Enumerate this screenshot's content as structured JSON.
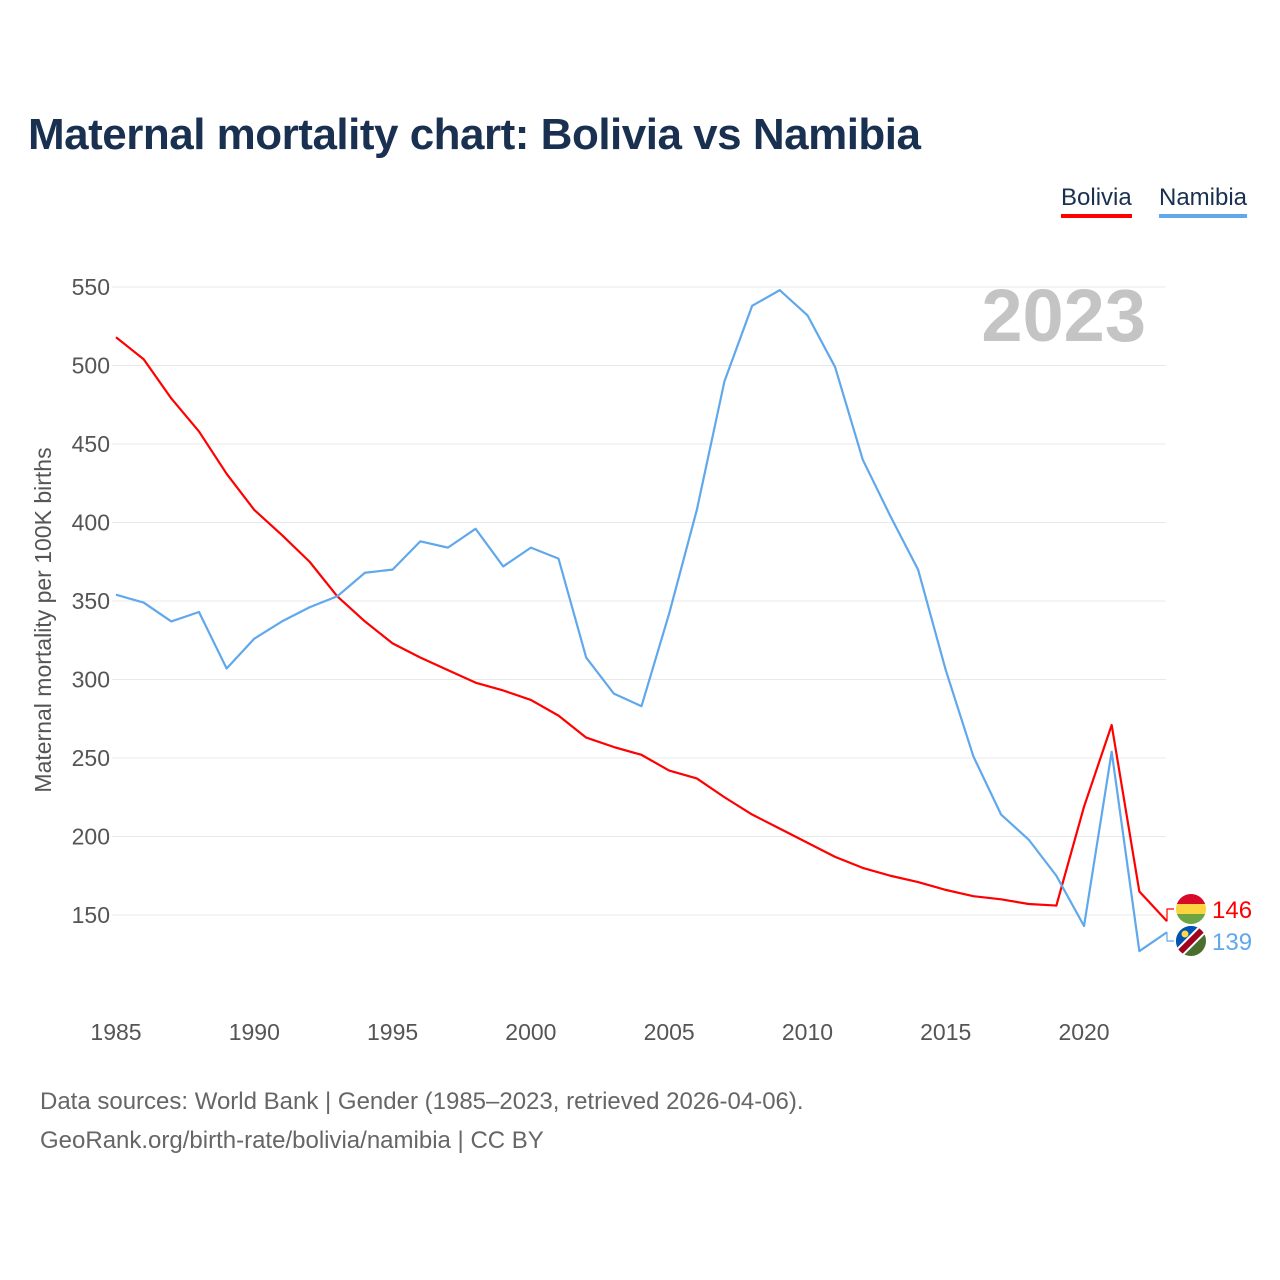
{
  "chart_data": {
    "type": "line",
    "title": "Maternal mortality chart: Bolivia vs Namibia",
    "ylabel": "Maternal mortality per 100K births",
    "xlabel": "",
    "year_overlay": "2023",
    "xlim": [
      1985,
      2023
    ],
    "ylim": [
      100,
      550
    ],
    "x_ticks": [
      1985,
      1990,
      1995,
      2000,
      2005,
      2010,
      2015,
      2020
    ],
    "y_ticks": [
      150,
      200,
      250,
      300,
      350,
      400,
      450,
      500,
      550
    ],
    "grid": true,
    "legend_position": "top-right",
    "x": [
      1985,
      1986,
      1987,
      1988,
      1989,
      1990,
      1991,
      1992,
      1993,
      1994,
      1995,
      1996,
      1997,
      1998,
      1999,
      2000,
      2001,
      2002,
      2003,
      2004,
      2005,
      2006,
      2007,
      2008,
      2009,
      2010,
      2011,
      2012,
      2013,
      2014,
      2015,
      2016,
      2017,
      2018,
      2019,
      2020,
      2021,
      2022,
      2023
    ],
    "series": [
      {
        "name": "Bolivia",
        "color": "#ff0000",
        "end_label": "146",
        "values": [
          518,
          504,
          479,
          458,
          431,
          408,
          392,
          375,
          353,
          337,
          323,
          314,
          306,
          298,
          293,
          287,
          277,
          263,
          257,
          252,
          242,
          237,
          225,
          214,
          205,
          196,
          187,
          180,
          175,
          171,
          166,
          162,
          160,
          157,
          156,
          219,
          271,
          165,
          146
        ]
      },
      {
        "name": "Namibia",
        "color": "#60a8ec",
        "end_label": "139",
        "values": [
          354,
          349,
          337,
          343,
          307,
          326,
          337,
          346,
          353,
          368,
          370,
          388,
          384,
          396,
          372,
          384,
          377,
          314,
          291,
          283,
          342,
          408,
          490,
          538,
          548,
          532,
          499,
          440,
          404,
          370,
          306,
          251,
          214,
          198,
          175,
          143,
          254,
          127,
          139
        ]
      }
    ]
  },
  "footer": {
    "line1": "Data sources: World Bank | Gender (1985–2023, retrieved 2026-04-06).",
    "line2": "GeoRank.org/birth-rate/bolivia/namibia | CC BY"
  }
}
